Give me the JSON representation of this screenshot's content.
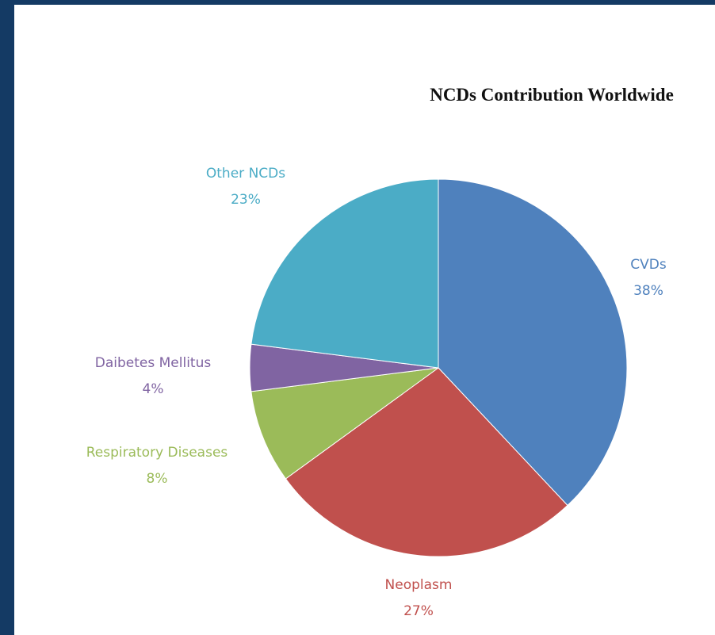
{
  "chart_data": {
    "type": "pie",
    "title": "NCDs Contribution  Worldwide",
    "slices": [
      {
        "label": "CVDs",
        "value": 38,
        "value_label": "38%",
        "color": "#4f81bd"
      },
      {
        "label": "Neoplasm",
        "value": 27,
        "value_label": "27%",
        "color": "#c0504d"
      },
      {
        "label": "Respiratory Diseases",
        "value": 8,
        "value_label": "8%",
        "color": "#9bbb59"
      },
      {
        "label": "Daibetes Mellitus",
        "value": 4,
        "value_label": "4%",
        "color": "#8064a2"
      },
      {
        "label": "Other NCDs",
        "value": 23,
        "value_label": "23%",
        "color": "#4bacc6"
      }
    ],
    "start_angle_deg": 0,
    "direction": "clockwise",
    "legend": "none"
  }
}
